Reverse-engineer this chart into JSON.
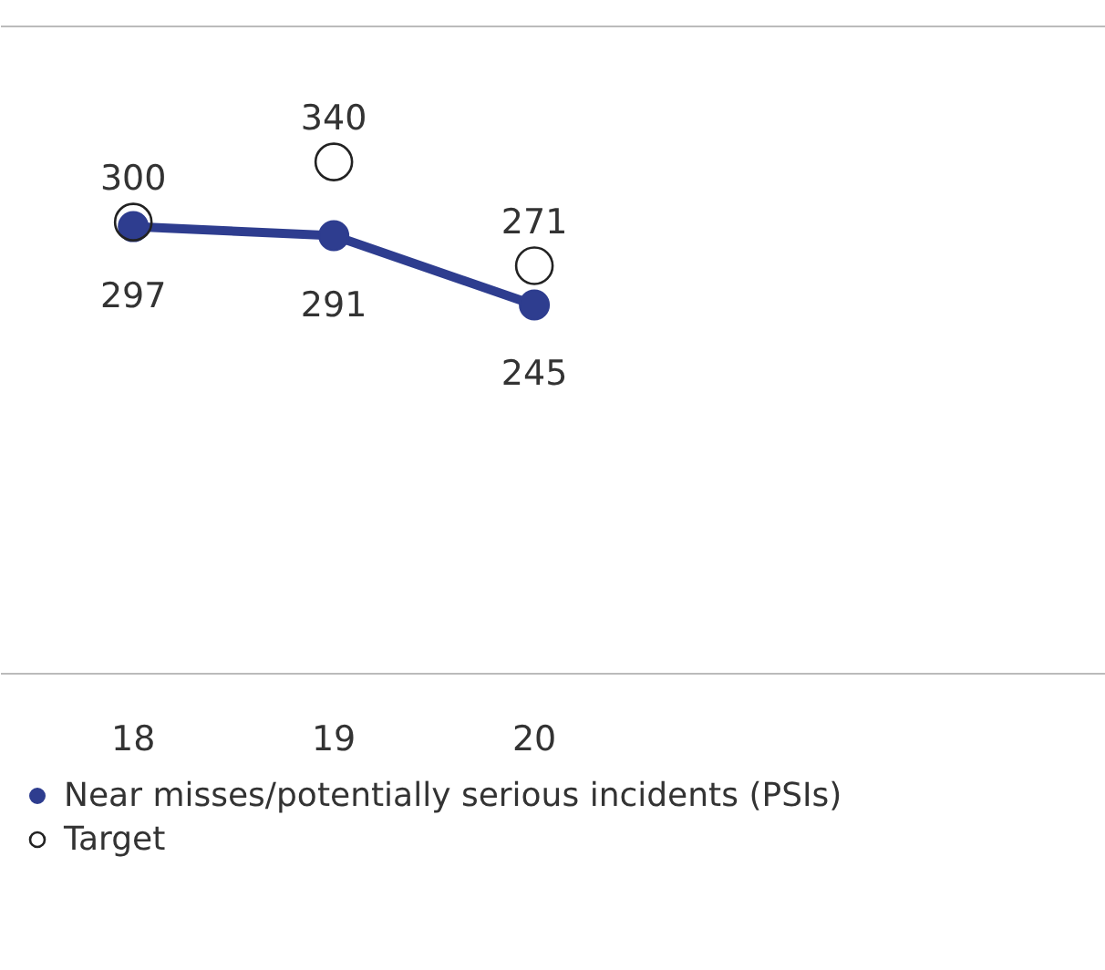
{
  "chart_data": {
    "type": "line",
    "categories": [
      "18",
      "19",
      "20"
    ],
    "ylim": [
      0,
      430
    ],
    "data_labels": true,
    "legend": "bottom",
    "tick_labels": "x",
    "grid": false,
    "series": [
      {
        "name": "Near misses/potentially serious incidents (PSIs)",
        "color": "#2e3d8f",
        "marker": "circle",
        "values": [
          297,
          291,
          245
        ]
      },
      {
        "name": "Target",
        "type": "scatter",
        "color": "#222222",
        "marker": "circle",
        "values": [
          300,
          340,
          271
        ]
      }
    ]
  }
}
